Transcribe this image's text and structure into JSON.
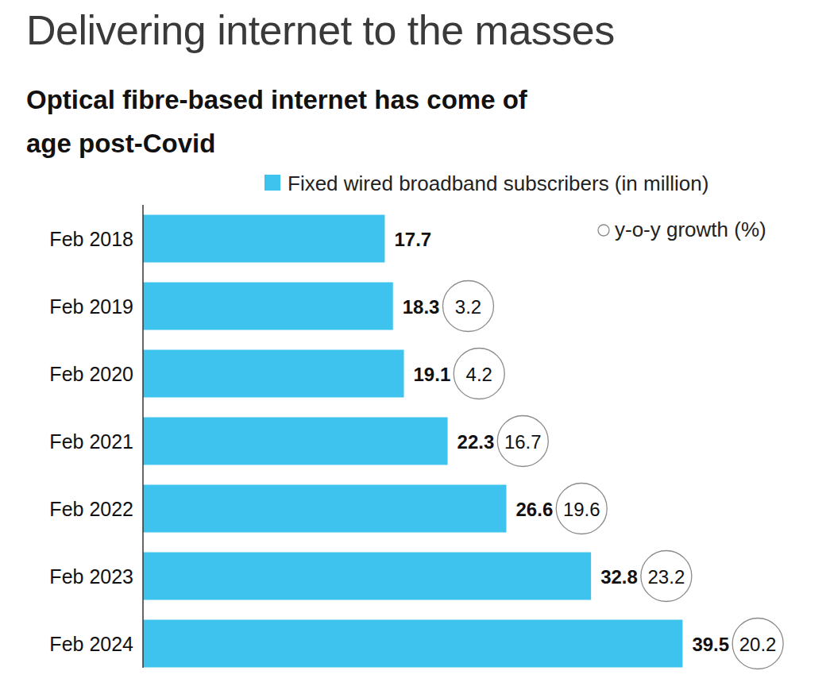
{
  "chart_data": {
    "type": "bar",
    "orientation": "horizontal",
    "title": "Delivering internet to the masses",
    "subtitle": "Optical fibre-based internet has come of age post-Covid",
    "categories": [
      "Feb 2018",
      "Feb 2019",
      "Feb 2020",
      "Feb 2021",
      "Feb 2022",
      "Feb 2023",
      "Feb 2024"
    ],
    "series": [
      {
        "name": "Fixed wired broadband subscribers (in million)",
        "color": "#3ec3ee",
        "values": [
          17.7,
          18.3,
          19.1,
          22.3,
          26.6,
          32.8,
          39.5
        ]
      },
      {
        "name": "y-o-y growth (%)",
        "type": "label",
        "marker": "circle",
        "color": "#8a8a8a",
        "values": [
          null,
          3.2,
          4.2,
          16.7,
          19.6,
          23.2,
          20.2
        ]
      }
    ],
    "xlim": [
      0,
      50
    ],
    "data_labels": true,
    "tick_labels": "y",
    "grid": false
  }
}
